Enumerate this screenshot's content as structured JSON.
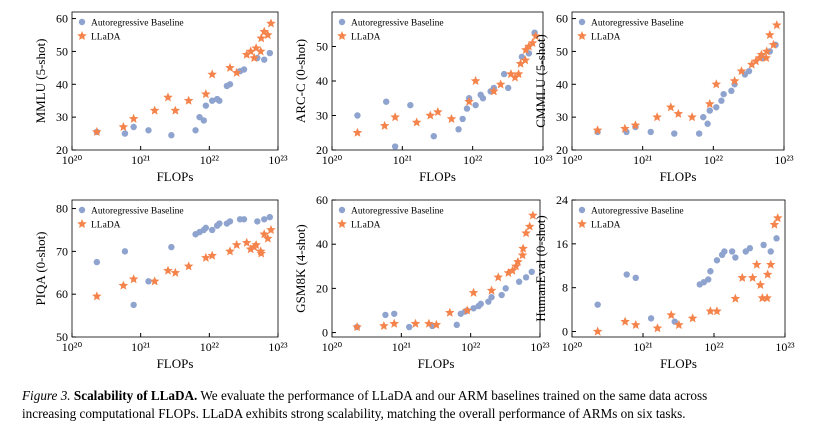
{
  "chart_data": [
    {
      "type": "scatter",
      "xlabel": "FLOPs",
      "ylabel": "MMLU (5-shot)",
      "xscale": "log",
      "xlim": [
        1e+20,
        1e+23
      ],
      "xticks": [
        {
          "value": 1e+20,
          "label": "10²⁰"
        },
        {
          "value": 1e+21,
          "label": "10²¹"
        },
        {
          "value": 1e+22,
          "label": "10²²"
        },
        {
          "value": 1e+23,
          "label": "10²³"
        }
      ],
      "ylim": [
        20,
        62
      ],
      "yticks": [
        20,
        30,
        40,
        50,
        60
      ],
      "legend": "upper left",
      "series": [
        {
          "name": "Autoregressive Baseline",
          "color": "#8fa3cf",
          "marker": "circle",
          "x": [
            2.3e+20,
            5.9e+20,
            7.9e+20,
            1.3e+21,
            2.8e+21,
            6.3e+21,
            7.2e+21,
            8.3e+21,
            8.9e+21,
            1.1e+22,
            1.3e+22,
            1.4e+22,
            1.8e+22,
            2e+22,
            2.8e+22,
            3.2e+22,
            5e+22,
            6.3e+22,
            7.6e+22
          ],
          "values": [
            25.5,
            25,
            27,
            26,
            24.5,
            26,
            30,
            29,
            33.5,
            35,
            35.5,
            35,
            39.5,
            40,
            44,
            44.5,
            48,
            47.5,
            49.5
          ]
        },
        {
          "name": "LLaDA",
          "color": "#f4844c",
          "marker": "star",
          "x": [
            2.3e+20,
            5.6e+20,
            7.9e+20,
            1.6e+21,
            2.5e+21,
            3.2e+21,
            5e+21,
            8.9e+21,
            1.1e+22,
            2e+22,
            2.5e+22,
            3.5e+22,
            4e+22,
            4.5e+22,
            4.8e+22,
            5.6e+22,
            5.7e+22,
            6.3e+22,
            7.9e+22,
            7.1e+22
          ],
          "values": [
            25.5,
            27,
            29.5,
            32,
            36,
            32,
            35,
            37,
            43,
            45,
            43.5,
            49,
            50,
            48,
            51,
            50,
            54,
            56,
            58.5,
            55
          ]
        }
      ]
    },
    {
      "type": "scatter",
      "xlabel": "FLOPs",
      "ylabel": "ARC-C (0-shot)",
      "xscale": "log",
      "xlim": [
        1e+20,
        1e+23
      ],
      "xticks": [
        {
          "value": 1e+20,
          "label": "10²⁰"
        },
        {
          "value": 1e+21,
          "label": "10²¹"
        },
        {
          "value": 1e+22,
          "label": "10²²"
        },
        {
          "value": 1e+23,
          "label": "10²³"
        }
      ],
      "ylim": [
        20,
        60
      ],
      "yticks": [
        20,
        30,
        40,
        50
      ],
      "legend": "upper left",
      "series": [
        {
          "name": "Autoregressive Baseline",
          "color": "#8fa3cf",
          "marker": "circle",
          "x": [
            2.3e+20,
            5.9e+20,
            7.9e+20,
            1.3e+21,
            2.8e+21,
            6.3e+21,
            7.2e+21,
            8.3e+21,
            8.9e+21,
            1.1e+22,
            1.3e+22,
            1.4e+22,
            1.8e+22,
            2e+22,
            2.8e+22,
            3.2e+22,
            5e+22,
            6.3e+22,
            7.6e+22
          ],
          "values": [
            30,
            34,
            21,
            33,
            24,
            26,
            29,
            32,
            35,
            33,
            36,
            35,
            37,
            38,
            42,
            38,
            47,
            48,
            54
          ]
        },
        {
          "name": "LLaDA",
          "color": "#f4844c",
          "marker": "star",
          "x": [
            2.3e+20,
            5.6e+20,
            7.9e+20,
            1.6e+21,
            2.5e+21,
            3.2e+21,
            5e+21,
            8.9e+21,
            1.1e+22,
            2e+22,
            2.5e+22,
            3.5e+22,
            4e+22,
            4.5e+22,
            4.8e+22,
            5.6e+22,
            5.7e+22,
            6.3e+22,
            7.9e+22,
            7.1e+22
          ],
          "values": [
            25,
            27,
            29.5,
            28,
            30,
            31,
            29,
            34,
            40,
            37,
            39,
            42,
            41,
            42,
            45,
            46,
            49,
            50,
            53,
            51
          ]
        }
      ]
    },
    {
      "type": "scatter",
      "xlabel": "FLOPs",
      "ylabel": "CMMLU (5-shot)",
      "xscale": "log",
      "xlim": [
        1e+20,
        1e+23
      ],
      "xticks": [
        {
          "value": 1e+20,
          "label": "10²⁰"
        },
        {
          "value": 1e+21,
          "label": "10²¹"
        },
        {
          "value": 1e+22,
          "label": "10²²"
        },
        {
          "value": 1e+23,
          "label": "10²³"
        }
      ],
      "ylim": [
        20,
        62
      ],
      "yticks": [
        20,
        30,
        40,
        50,
        60
      ],
      "legend": "upper left",
      "series": [
        {
          "name": "Autoregressive Baseline",
          "color": "#8fa3cf",
          "marker": "circle",
          "x": [
            2.3e+20,
            5.9e+20,
            7.9e+20,
            1.3e+21,
            2.8e+21,
            6.3e+21,
            7.2e+21,
            8.3e+21,
            8.9e+21,
            1.1e+22,
            1.3e+22,
            1.4e+22,
            1.8e+22,
            2e+22,
            2.8e+22,
            3.2e+22,
            5e+22,
            6.3e+22,
            7.6e+22
          ],
          "values": [
            25.5,
            25.5,
            27,
            25.5,
            25,
            25,
            30,
            28,
            32,
            33,
            35,
            37,
            38,
            40,
            43,
            44,
            48,
            50,
            52
          ]
        },
        {
          "name": "LLaDA",
          "color": "#f4844c",
          "marker": "star",
          "x": [
            2.3e+20,
            5.6e+20,
            7.9e+20,
            1.6e+21,
            2.5e+21,
            3.2e+21,
            5e+21,
            8.9e+21,
            1.1e+22,
            2e+22,
            2.5e+22,
            3.5e+22,
            4e+22,
            4.5e+22,
            4.8e+22,
            5.6e+22,
            5.7e+22,
            6.3e+22,
            7.9e+22,
            7.1e+22
          ],
          "values": [
            26,
            26.5,
            27.5,
            30,
            33,
            31,
            30,
            34,
            40,
            41,
            44,
            46,
            47,
            48,
            49,
            48,
            50,
            55,
            58,
            52
          ]
        }
      ]
    },
    {
      "type": "scatter",
      "xlabel": "FLOPs",
      "ylabel": "PIQA (0-shot)",
      "xscale": "log",
      "xlim": [
        1e+20,
        1e+23
      ],
      "xticks": [
        {
          "value": 1e+20,
          "label": "10²⁰"
        },
        {
          "value": 1e+21,
          "label": "10²¹"
        },
        {
          "value": 1e+22,
          "label": "10²²"
        },
        {
          "value": 1e+23,
          "label": "10²³"
        }
      ],
      "ylim": [
        50,
        82
      ],
      "yticks": [
        50,
        60,
        70,
        80
      ],
      "legend": "upper left",
      "series": [
        {
          "name": "Autoregressive Baseline",
          "color": "#8fa3cf",
          "marker": "circle",
          "x": [
            2.3e+20,
            5.9e+20,
            7.9e+20,
            1.3e+21,
            2.8e+21,
            6.3e+21,
            7.2e+21,
            8.3e+21,
            8.9e+21,
            1.1e+22,
            1.3e+22,
            1.4e+22,
            1.8e+22,
            2e+22,
            2.8e+22,
            3.2e+22,
            5e+22,
            6.3e+22,
            7.6e+22
          ],
          "values": [
            67.5,
            70,
            57.5,
            63,
            71,
            74,
            74.5,
            75,
            75.5,
            75,
            76,
            76.5,
            76.5,
            77,
            77.5,
            77.5,
            77,
            77.5,
            78
          ]
        },
        {
          "name": "LLaDA",
          "color": "#f4844c",
          "marker": "star",
          "x": [
            2.3e+20,
            5.6e+20,
            7.9e+20,
            1.6e+21,
            2.5e+21,
            3.2e+21,
            5e+21,
            8.9e+21,
            1.1e+22,
            2e+22,
            2.5e+22,
            3.5e+22,
            4e+22,
            4.5e+22,
            4.8e+22,
            5.6e+22,
            5.7e+22,
            6.3e+22,
            7.9e+22,
            7.1e+22
          ],
          "values": [
            59.5,
            62,
            63.5,
            63,
            65.5,
            65,
            66.5,
            68.5,
            69,
            70,
            71.5,
            72,
            70.5,
            71,
            71.5,
            70,
            69.5,
            74,
            75,
            73
          ]
        }
      ]
    },
    {
      "type": "scatter",
      "xlabel": "FLOPs",
      "ylabel": "GSM8K (4-shot)",
      "xscale": "log",
      "xlim": [
        1e+20,
        1e+23
      ],
      "xticks": [
        {
          "value": 1e+20,
          "label": "10²⁰"
        },
        {
          "value": 1e+21,
          "label": "10²¹"
        },
        {
          "value": 1e+22,
          "label": "10²²"
        },
        {
          "value": 1e+23,
          "label": "10²³"
        }
      ],
      "ylim": [
        -2,
        60
      ],
      "yticks": [
        0,
        20,
        40,
        60
      ],
      "legend": "upper left",
      "series": [
        {
          "name": "Autoregressive Baseline",
          "color": "#8fa3cf",
          "marker": "circle",
          "x": [
            2.3e+20,
            5.9e+20,
            7.9e+20,
            1.3e+21,
            2.8e+21,
            6.3e+21,
            7.2e+21,
            8.3e+21,
            8.9e+21,
            1.1e+22,
            1.3e+22,
            1.4e+22,
            1.8e+22,
            2e+22,
            2.8e+22,
            3.2e+22,
            5e+22,
            6.3e+22,
            7.6e+22
          ],
          "values": [
            2.5,
            8,
            8.5,
            2.5,
            3,
            3.5,
            8.5,
            9.5,
            10,
            11,
            12,
            13,
            14,
            16,
            17,
            20,
            23,
            25,
            27.5
          ]
        },
        {
          "name": "LLaDA",
          "color": "#f4844c",
          "marker": "star",
          "x": [
            2.3e+20,
            5.6e+20,
            7.9e+20,
            1.6e+21,
            2.5e+21,
            3.2e+21,
            5e+21,
            8.9e+21,
            1.1e+22,
            2e+22,
            2.5e+22,
            3.5e+22,
            4e+22,
            4.5e+22,
            4.8e+22,
            5.6e+22,
            5.7e+22,
            6.3e+22,
            7.9e+22,
            7.1e+22
          ],
          "values": [
            2.5,
            3,
            4,
            4,
            4,
            3.5,
            9,
            10,
            18,
            19,
            25,
            27,
            28,
            30,
            32,
            35,
            38,
            45,
            53,
            48
          ]
        }
      ]
    },
    {
      "type": "scatter",
      "xlabel": "FLOPs",
      "ylabel": "HumanEval (0-shot)",
      "xscale": "log",
      "xlim": [
        1e+20,
        1e+23
      ],
      "xticks": [
        {
          "value": 1e+20,
          "label": "10²⁰"
        },
        {
          "value": 1e+21,
          "label": "10²¹"
        },
        {
          "value": 1e+22,
          "label": "10²²"
        },
        {
          "value": 1e+23,
          "label": "10²³"
        }
      ],
      "ylim": [
        -1,
        24
      ],
      "yticks": [
        0,
        8,
        16,
        24
      ],
      "legend": "upper left",
      "series": [
        {
          "name": "Autoregressive Baseline",
          "color": "#8fa3cf",
          "marker": "circle",
          "x": [
            2.3e+20,
            5.9e+20,
            7.9e+20,
            1.3e+21,
            2.8e+21,
            6.3e+21,
            7.2e+21,
            8.3e+21,
            8.9e+21,
            1.1e+22,
            1.3e+22,
            1.4e+22,
            1.8e+22,
            2e+22,
            2.8e+22,
            3.2e+22,
            5e+22,
            6.3e+22,
            7.6e+22
          ],
          "values": [
            4.9,
            10.4,
            9.8,
            2.4,
            1.8,
            8.6,
            9,
            9.5,
            11,
            13,
            14,
            14.6,
            14.6,
            13.5,
            14.6,
            15.2,
            15.8,
            14.6,
            17
          ]
        },
        {
          "name": "LLaDA",
          "color": "#f4844c",
          "marker": "star",
          "x": [
            2.3e+20,
            5.6e+20,
            7.9e+20,
            1.6e+21,
            2.5e+21,
            3.2e+21,
            5e+21,
            8.9e+21,
            1.1e+22,
            2e+22,
            2.5e+22,
            3.5e+22,
            4e+22,
            4.5e+22,
            4.8e+22,
            5.6e+22,
            5.7e+22,
            6.3e+22,
            7.9e+22,
            7.1e+22
          ],
          "values": [
            0,
            1.8,
            1.2,
            0.6,
            3,
            1.2,
            2.4,
            3.7,
            3.7,
            6,
            9.8,
            9.8,
            12.2,
            8.5,
            6.1,
            6.1,
            10.4,
            12.2,
            20.7,
            19.5
          ]
        }
      ]
    }
  ],
  "caption": {
    "label": "Figure 3.",
    "title": "Scalability of LLaDA.",
    "lines": [
      "We evaluate the performance of LLaDA and our ARM baselines trained on the same data across",
      "increasing computational FLOPs. LLaDA exhibits strong scalability, matching the overall performance of ARMs on six tasks."
    ]
  }
}
